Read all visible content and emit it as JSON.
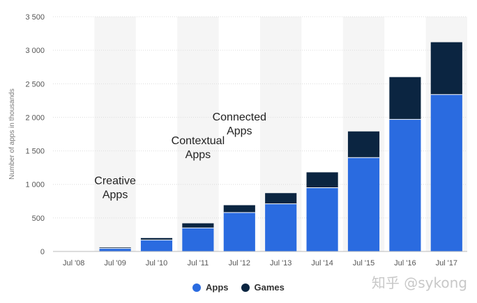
{
  "chart_data": {
    "type": "bar",
    "stacked": true,
    "categories": [
      "Jul '08",
      "Jul '09",
      "Jul '10",
      "Jul '11",
      "Jul '12",
      "Jul '13",
      "Jul '14",
      "Jul '15",
      "Jul '16",
      "Jul '17"
    ],
    "series": [
      {
        "name": "Apps",
        "color": "#2a6be0",
        "values": [
          3,
          45,
          170,
          350,
          580,
          710,
          950,
          1400,
          1970,
          2340
        ]
      },
      {
        "name": "Games",
        "color": "#0b2541",
        "values": [
          0,
          15,
          30,
          70,
          110,
          160,
          230,
          390,
          630,
          780
        ]
      }
    ],
    "ylabel": "Number of apps in thousands",
    "ylim": [
      0,
      3500
    ],
    "yticks": [
      0,
      500,
      1000,
      1500,
      2000,
      2500,
      3000,
      3500
    ],
    "ytick_labels": [
      "0",
      "500",
      "1 000",
      "1 500",
      "2 000",
      "2 500",
      "3 000",
      "3 500"
    ],
    "grid": true,
    "legend_position": "bottom-center",
    "annotations": [
      {
        "lines": [
          "Creative",
          "Apps"
        ],
        "category_index": 1,
        "y": 1000
      },
      {
        "lines": [
          "Contextual",
          "Apps"
        ],
        "category_index": 3,
        "y": 1600
      },
      {
        "lines": [
          "Connected",
          "Apps"
        ],
        "category_index": 4,
        "y": 1950
      }
    ]
  },
  "legend": {
    "items": [
      {
        "label": "Apps",
        "color": "#2a6be0"
      },
      {
        "label": "Games",
        "color": "#0b2541"
      }
    ]
  },
  "watermark": "知乎 @sykong"
}
